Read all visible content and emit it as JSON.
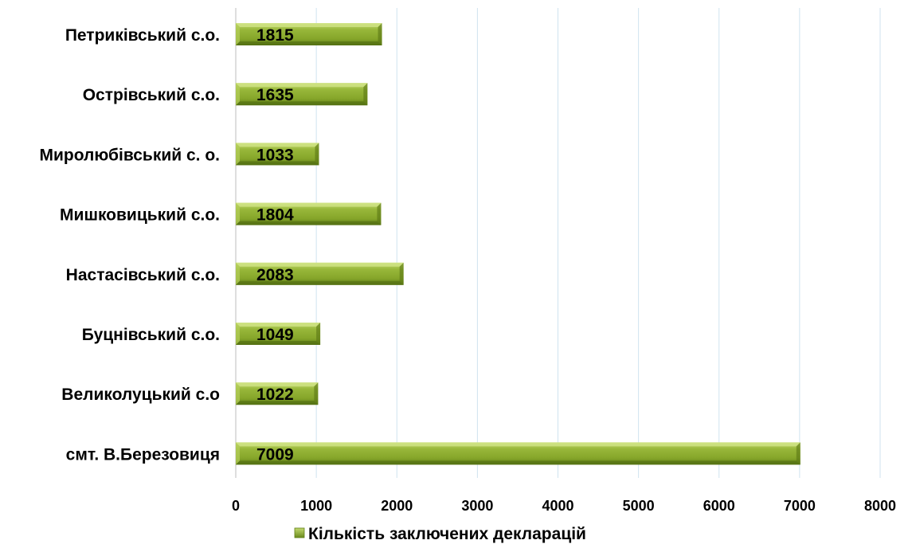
{
  "chart_data": {
    "type": "bar",
    "orientation": "horizontal",
    "categories": [
      "Петриківський с.о.",
      "Острівський с.о.",
      "Миролюбівський с. о.",
      "Мишковицький с.о.",
      "Настасівський с.о.",
      "Буцнівський с.о.",
      "Великолуцький с.о",
      "смт. В.Березовиця"
    ],
    "series": [
      {
        "name": "Кількість заключених декларацій",
        "values": [
          1815,
          1635,
          1033,
          1804,
          2083,
          1049,
          1022,
          7009
        ]
      }
    ],
    "data_labels": [
      "1815",
      "1635",
      "1033",
      "1804",
      "2083",
      "1049",
      "1022",
      "7009"
    ],
    "x_ticks": [
      "0",
      "1000",
      "2000",
      "3000",
      "4000",
      "5000",
      "6000",
      "7000",
      "8000"
    ],
    "xlim": [
      0,
      8000
    ],
    "grid": "vertical",
    "legend_position": "bottom",
    "title": "",
    "xlabel": "",
    "ylabel": "",
    "colors": {
      "bar_light": "#a8c64a",
      "bar_mid": "#8aab2c",
      "bar_dark": "#6a8a1c",
      "grid": "#cfe3ef",
      "legend_marker": "#8aab2c"
    }
  }
}
